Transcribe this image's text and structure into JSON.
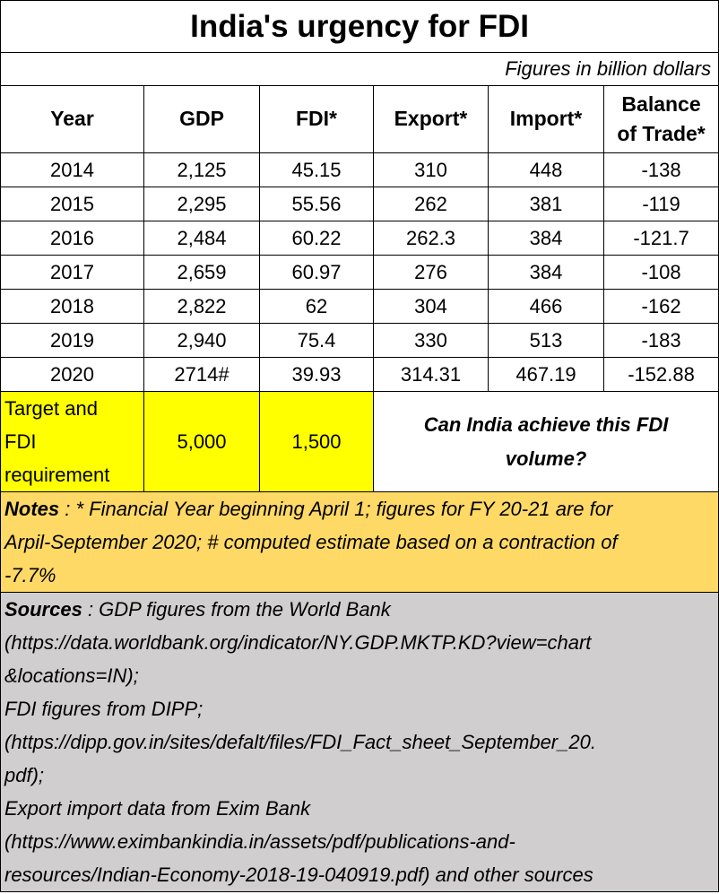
{
  "title": "India's urgency for FDI",
  "subtitle": "Figures in billion dollars",
  "headers": {
    "year": "Year",
    "gdp": "GDP",
    "fdi": "FDI*",
    "export": "Export*",
    "import": "Import*",
    "bot_line1": "Balance",
    "bot_line2": "of Trade*"
  },
  "rows": [
    {
      "year": "2014",
      "gdp": "2,125",
      "fdi": "45.15",
      "export": "310",
      "import": "448",
      "bot": "-138"
    },
    {
      "year": "2015",
      "gdp": "2,295",
      "fdi": "55.56",
      "export": "262",
      "import": "381",
      "bot": "-119"
    },
    {
      "year": "2016",
      "gdp": "2,484",
      "fdi": "60.22",
      "export": "262.3",
      "import": "384",
      "bot": "-121.7"
    },
    {
      "year": "2017",
      "gdp": "2,659",
      "fdi": "60.97",
      "export": "276",
      "import": "384",
      "bot": "-108"
    },
    {
      "year": "2018",
      "gdp": "2,822",
      "fdi": "62",
      "export": "304",
      "import": "466",
      "bot": "-162"
    },
    {
      "year": "2019",
      "gdp": "2,940",
      "fdi": "75.4",
      "export": "330",
      "import": "513",
      "bot": "-183"
    },
    {
      "year": "2020",
      "gdp": "2714#",
      "fdi": "39.93",
      "export": "314.31",
      "import": "467.19",
      "bot": "-152.88"
    }
  ],
  "target": {
    "label_line1": "Target and",
    "label_line2": "FDI",
    "label_line3": "requirement",
    "gdp": "5,000",
    "fdi": "1,500",
    "question_line1": "Can India achieve this FDI",
    "question_line2": "volume?"
  },
  "notes": {
    "lead": "Notes",
    "line1": " : * Financial Year beginning April 1; figures for FY 20-21 are for",
    "line2": "Arpil-September 2020; # computed estimate based on a contraction of",
    "line3": "-7.7%"
  },
  "sources": {
    "lead": "Sources",
    "line1": " : GDP figures from the World Bank",
    "line2": "(https://data.worldbank.org/indicator/NY.GDP.MKTP.KD?view=chart",
    "line3": "&locations=IN);",
    "line4": "FDI figures from DIPP;",
    "line5": "(https://dipp.gov.in/sites/defalt/files/FDI_Fact_sheet_September_20.",
    "line6": "pdf);",
    "line7": "Export import data from Exim Bank",
    "line8": "(https://www.eximbankindia.in/assets/pdf/publications-and-",
    "line9": "resources/Indian-Economy-2018-19-040919.pdf) and other sources"
  },
  "colors": {
    "target_fill": "#ffff00",
    "notes_fill": "#ffd966",
    "sources_fill": "#d0cece"
  }
}
